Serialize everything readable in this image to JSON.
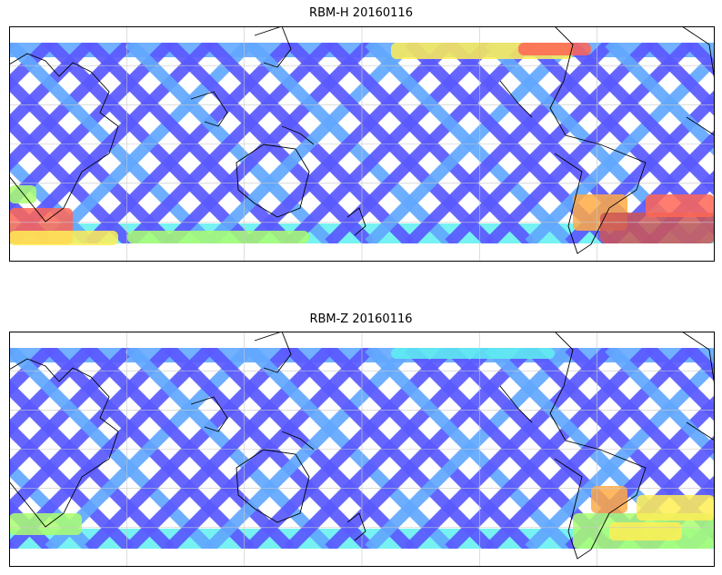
{
  "panels": [
    {
      "title": "RBM-H 20160116"
    },
    {
      "title": "RBM-Z 20160116"
    }
  ],
  "colormap": [
    "#5a5aff",
    "#62a8ff",
    "#5ff0f0",
    "#aaff70",
    "#ffee55",
    "#ffaa44",
    "#ff6655",
    "#cc5555"
  ],
  "colors": {
    "coastline": "#000000",
    "gridline": "#c8c8c8",
    "frame": "#000000"
  }
}
